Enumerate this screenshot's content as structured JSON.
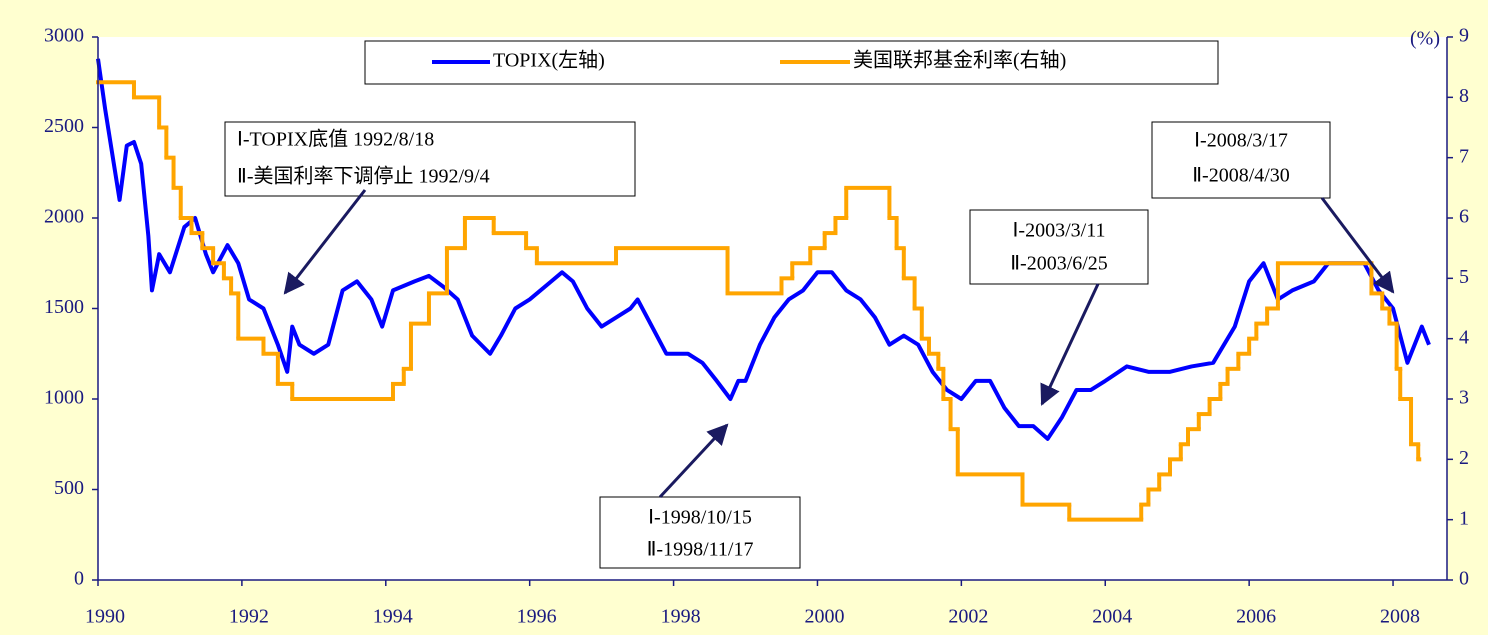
{
  "chart_data": {
    "type": "line",
    "y2label": "(%)",
    "xlim": [
      1990,
      2008.75
    ],
    "xticks": [
      1990,
      1992,
      1994,
      1996,
      1998,
      2000,
      2002,
      2004,
      2006,
      2008
    ],
    "ylim": [
      0,
      3000
    ],
    "yticks": [
      0,
      500,
      1000,
      1500,
      2000,
      2500,
      3000
    ],
    "y2lim": [
      0,
      9
    ],
    "y2ticks": [
      0,
      1,
      2,
      3,
      4,
      5,
      6,
      7,
      8,
      9
    ],
    "series": [
      {
        "name": "TOPIX(左轴)",
        "color": "#0000ff",
        "x": [
          1990.0,
          1990.1,
          1990.2,
          1990.3,
          1990.4,
          1990.5,
          1990.6,
          1990.7,
          1990.75,
          1990.85,
          1991.0,
          1991.2,
          1991.35,
          1991.5,
          1991.6,
          1991.8,
          1991.95,
          1992.1,
          1992.3,
          1992.5,
          1992.63,
          1992.7,
          1992.8,
          1993.0,
          1993.2,
          1993.4,
          1993.6,
          1993.8,
          1993.95,
          1994.1,
          1994.4,
          1994.6,
          1994.8,
          1995.0,
          1995.2,
          1995.45,
          1995.6,
          1995.8,
          1996.0,
          1996.3,
          1996.45,
          1996.6,
          1996.8,
          1997.0,
          1997.2,
          1997.4,
          1997.5,
          1997.7,
          1997.9,
          1998.0,
          1998.2,
          1998.4,
          1998.6,
          1998.79,
          1998.9,
          1999.0,
          1999.2,
          1999.4,
          1999.6,
          1999.8,
          2000.0,
          2000.2,
          2000.4,
          2000.6,
          2000.8,
          2001.0,
          2001.2,
          2001.4,
          2001.6,
          2001.8,
          2002.0,
          2002.2,
          2002.4,
          2002.6,
          2002.8,
          2003.0,
          2003.2,
          2003.4,
          2003.6,
          2003.8,
          2004.0,
          2004.3,
          2004.6,
          2004.9,
          2005.2,
          2005.5,
          2005.8,
          2006.0,
          2006.2,
          2006.4,
          2006.6,
          2006.9,
          2007.1,
          2007.4,
          2007.6,
          2007.8,
          2008.0,
          2008.2,
          2008.4,
          2008.5
        ],
        "values": [
          2880,
          2600,
          2350,
          2100,
          2400,
          2420,
          2300,
          1900,
          1600,
          1800,
          1700,
          1950,
          2000,
          1800,
          1700,
          1850,
          1750,
          1550,
          1500,
          1300,
          1150,
          1400,
          1300,
          1250,
          1300,
          1600,
          1650,
          1550,
          1400,
          1600,
          1650,
          1680,
          1620,
          1550,
          1350,
          1250,
          1350,
          1500,
          1550,
          1650,
          1700,
          1650,
          1500,
          1400,
          1450,
          1500,
          1550,
          1400,
          1250,
          1250,
          1250,
          1200,
          1100,
          1000,
          1100,
          1100,
          1300,
          1450,
          1550,
          1600,
          1700,
          1700,
          1600,
          1550,
          1450,
          1300,
          1350,
          1300,
          1150,
          1050,
          1000,
          1100,
          1100,
          950,
          850,
          850,
          780,
          900,
          1050,
          1050,
          1100,
          1180,
          1150,
          1150,
          1180,
          1200,
          1400,
          1650,
          1750,
          1550,
          1600,
          1650,
          1750,
          1750,
          1750,
          1600,
          1500,
          1200,
          1400,
          1300
        ]
      },
      {
        "name": "美国联邦基金利率(右轴)",
        "color": "#ffa500",
        "axis": "y2",
        "step": true,
        "x": [
          1990.0,
          1990.5,
          1990.85,
          1990.95,
          1991.05,
          1991.15,
          1991.3,
          1991.45,
          1991.6,
          1991.75,
          1991.85,
          1991.95,
          1992.3,
          1992.5,
          1992.7,
          1994.1,
          1994.25,
          1994.35,
          1994.6,
          1994.85,
          1995.1,
          1995.5,
          1995.95,
          1996.1,
          1997.2,
          1998.75,
          1999.5,
          1999.65,
          1999.9,
          2000.1,
          2000.25,
          2000.4,
          2001.0,
          2001.1,
          2001.2,
          2001.35,
          2001.45,
          2001.55,
          2001.68,
          2001.75,
          2001.85,
          2001.95,
          2002.85,
          2003.5,
          2004.5,
          2004.6,
          2004.75,
          2004.9,
          2005.05,
          2005.15,
          2005.3,
          2005.45,
          2005.6,
          2005.7,
          2005.85,
          2006.0,
          2006.1,
          2006.25,
          2006.4,
          2007.7,
          2007.85,
          2007.95,
          2008.05,
          2008.1,
          2008.25,
          2008.35
        ],
        "values": [
          8.25,
          8.0,
          7.5,
          7.0,
          6.5,
          6.0,
          5.75,
          5.5,
          5.25,
          5.0,
          4.75,
          4.0,
          3.75,
          3.25,
          3.0,
          3.25,
          3.5,
          4.25,
          4.75,
          5.5,
          6.0,
          5.75,
          5.5,
          5.25,
          5.5,
          4.75,
          5.0,
          5.25,
          5.5,
          5.75,
          6.0,
          6.5,
          6.0,
          5.5,
          5.0,
          4.5,
          4.0,
          3.75,
          3.5,
          3.0,
          2.5,
          1.75,
          1.25,
          1.0,
          1.25,
          1.5,
          1.75,
          2.0,
          2.25,
          2.5,
          2.75,
          3.0,
          3.25,
          3.5,
          3.75,
          4.0,
          4.25,
          4.5,
          5.25,
          4.75,
          4.5,
          4.25,
          3.5,
          3.0,
          2.25,
          2.0
        ]
      }
    ],
    "annotations": [
      {
        "lines": [
          "Ⅰ-TOPIX底值 1992/8/18",
          "Ⅱ-美国利率下调停止 1992/9/4"
        ]
      },
      {
        "lines": [
          "Ⅰ-1998/10/15",
          "Ⅱ-1998/11/17"
        ]
      },
      {
        "lines": [
          "Ⅰ-2003/3/11",
          "Ⅱ-2003/6/25"
        ]
      },
      {
        "lines": [
          "Ⅰ-2008/3/17",
          "Ⅱ-2008/4/30"
        ]
      }
    ]
  }
}
